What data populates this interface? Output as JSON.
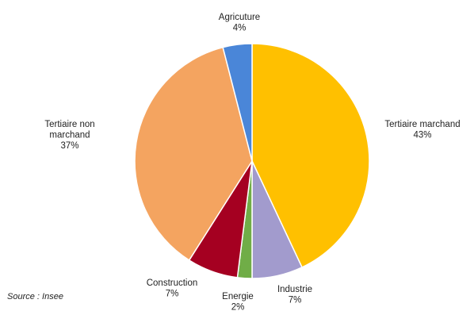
{
  "chart_data": {
    "type": "pie",
    "start_at": "12 o'clock",
    "direction": "clockwise",
    "slices": [
      {
        "label": "Tertiaire marchand",
        "value": 43,
        "value_label": "43%",
        "color": "#FFC000"
      },
      {
        "label": "Industrie",
        "value": 7,
        "value_label": "7%",
        "color": "#A29BCD"
      },
      {
        "label": "Energie",
        "value": 2,
        "value_label": "2%",
        "color": "#70AD47"
      },
      {
        "label": "Construction",
        "value": 7,
        "value_label": "7%",
        "color": "#A50021"
      },
      {
        "label": "Tertiaire non marchand",
        "value": 37,
        "value_label": "37%",
        "color": "#F4A460"
      },
      {
        "label": "Agricuture",
        "value": 4,
        "value_label": "4%",
        "color": "#4A86D8"
      }
    ]
  },
  "source_note": "Source : Insee"
}
